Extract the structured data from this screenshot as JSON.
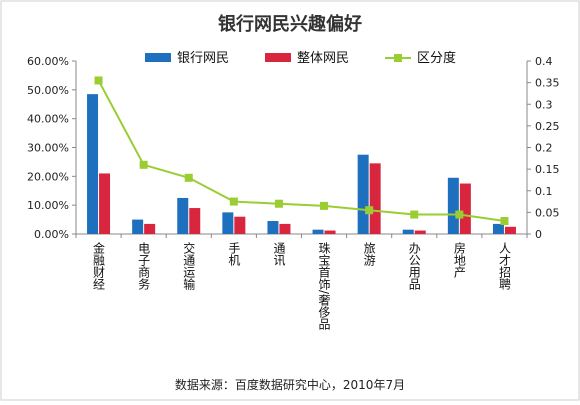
{
  "chart_data": {
    "type": "bar",
    "title": "银行网民兴趣偏好",
    "categories": [
      "金融财经",
      "电子商务",
      "交通运输",
      "手机",
      "通讯",
      "珠宝首饰/奢侈品",
      "旅游",
      "办公用品",
      "房地产",
      "人才招聘"
    ],
    "series": [
      {
        "name": "银行网民",
        "type": "bar",
        "axis": "left",
        "color": "#1f6fbf",
        "values": [
          48.5,
          5.0,
          12.5,
          7.5,
          4.5,
          1.5,
          27.5,
          1.5,
          19.5,
          3.5
        ]
      },
      {
        "name": "整体网民",
        "type": "bar",
        "axis": "left",
        "color": "#d7263d",
        "values": [
          21.0,
          3.5,
          9.0,
          6.0,
          3.5,
          1.2,
          24.5,
          1.2,
          17.5,
          2.5
        ]
      },
      {
        "name": "区分度",
        "type": "line",
        "axis": "right",
        "color": "#9acd32",
        "values": [
          0.355,
          0.16,
          0.13,
          0.075,
          0.07,
          0.065,
          0.055,
          0.045,
          0.045,
          0.03
        ]
      }
    ],
    "left_axis": {
      "ylim": [
        0,
        60
      ],
      "ticks": [
        "0.00%",
        "10.00%",
        "20.00%",
        "30.00%",
        "40.00%",
        "50.00%",
        "60.00%"
      ]
    },
    "right_axis": {
      "ylim": [
        0,
        0.4
      ],
      "ticks": [
        "0",
        "0.05",
        "0.1",
        "0.15",
        "0.2",
        "0.25",
        "0.3",
        "0.35",
        "0.4"
      ]
    },
    "legend_position": "top",
    "grid": false,
    "source": "数据来源：百度数据研究中心，2010年7月"
  }
}
